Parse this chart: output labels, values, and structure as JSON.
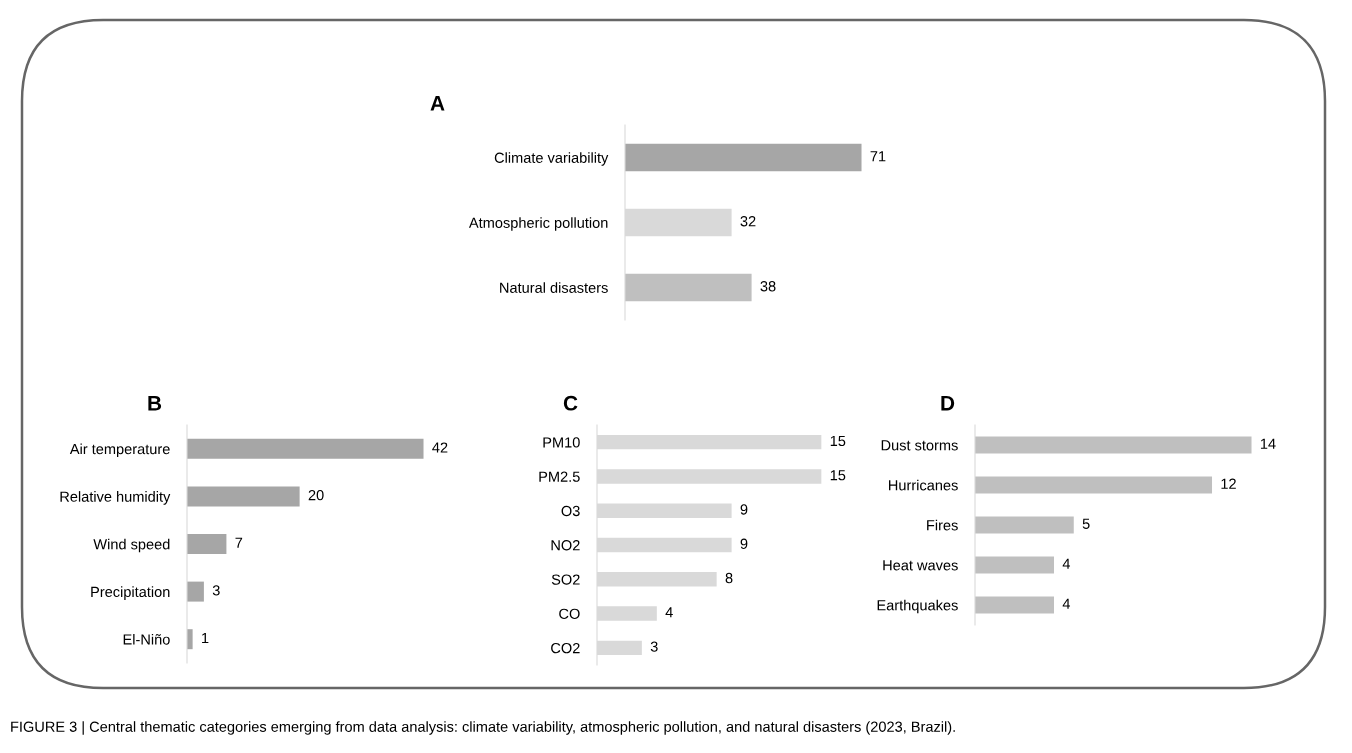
{
  "chart_data": [
    {
      "type": "bar",
      "orientation": "horizontal",
      "title": "A",
      "categories": [
        "Climate variability",
        "Atmospheric pollution",
        "Natural disasters"
      ],
      "values": [
        71,
        32,
        38
      ],
      "colors": [
        "#a6a6a6",
        "#d9d9d9",
        "#bfbfbf"
      ],
      "data_labels": true,
      "annotations": [
        "FIGURE 3 | Central thematic categories emerging from data analysis: climate variability, atmospheric pollution, and natural disasters (2023, Brazil)."
      ]
    },
    {
      "type": "bar",
      "orientation": "horizontal",
      "title": "B",
      "categories": [
        "Air temperature",
        "Relative humidity",
        "Wind speed",
        "Precipitation",
        "El-Niño"
      ],
      "values": [
        42,
        20,
        7,
        3,
        1
      ],
      "colors": [
        "#a6a6a6",
        "#a6a6a6",
        "#a6a6a6",
        "#a6a6a6",
        "#a6a6a6"
      ],
      "data_labels": true
    },
    {
      "type": "bar",
      "orientation": "horizontal",
      "title": "C",
      "categories": [
        "PM10",
        "PM2.5",
        "O3",
        "NO2",
        "SO2",
        "CO",
        "CO2"
      ],
      "values": [
        15,
        15,
        9,
        9,
        8,
        4,
        3
      ],
      "colors": [
        "#d9d9d9",
        "#d9d9d9",
        "#d9d9d9",
        "#d9d9d9",
        "#d9d9d9",
        "#d9d9d9",
        "#d9d9d9"
      ],
      "data_labels": true
    },
    {
      "type": "bar",
      "orientation": "horizontal",
      "title": "D",
      "categories": [
        "Dust storms",
        "Hurricanes",
        "Fires",
        "Heat waves",
        "Earthquakes"
      ],
      "values": [
        14,
        12,
        5,
        4,
        4
      ],
      "colors": [
        "#bfbfbf",
        "#bfbfbf",
        "#bfbfbf",
        "#bfbfbf",
        "#bfbfbf"
      ],
      "data_labels": true
    }
  ]
}
